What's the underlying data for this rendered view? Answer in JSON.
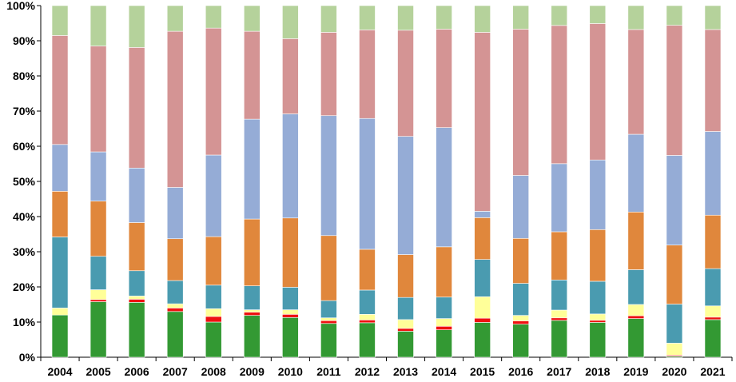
{
  "chart_data": {
    "type": "bar",
    "stacked": true,
    "percent_stacked": true,
    "title": "",
    "xlabel": "",
    "ylabel": "",
    "ylim": [
      0,
      100
    ],
    "y_ticks": [
      "0%",
      "10%",
      "20%",
      "30%",
      "40%",
      "50%",
      "60%",
      "70%",
      "80%",
      "90%",
      "100%"
    ],
    "grid": false,
    "legend": "none",
    "categories": [
      "2004",
      "2005",
      "2006",
      "2007",
      "2008",
      "2009",
      "2010",
      "2011",
      "2012",
      "2013",
      "2014",
      "2015",
      "2016",
      "2017",
      "2018",
      "2019",
      "2020",
      "2021"
    ],
    "series": [
      {
        "color": "#339933",
        "values": [
          12.0,
          15.8,
          15.6,
          13.0,
          10.0,
          11.9,
          11.3,
          9.6,
          9.8,
          7.4,
          7.8,
          9.9,
          9.4,
          10.4,
          9.9,
          11.0,
          0.3,
          10.7
        ]
      },
      {
        "color": "#ee1111",
        "values": [
          0.0,
          0.6,
          0.9,
          1.0,
          1.6,
          0.9,
          0.9,
          0.8,
          0.8,
          0.8,
          1.0,
          1.2,
          0.9,
          0.7,
          0.6,
          0.8,
          0.3,
          0.7
        ]
      },
      {
        "color": "#ffff99",
        "values": [
          2.0,
          2.8,
          0.9,
          1.2,
          2.2,
          0.7,
          1.3,
          0.8,
          1.6,
          2.5,
          2.2,
          6.1,
          1.6,
          2.2,
          1.8,
          3.2,
          3.4,
          3.2
        ]
      },
      {
        "color": "#4a9bb0",
        "values": [
          20.2,
          9.5,
          7.2,
          6.6,
          6.7,
          6.8,
          6.4,
          4.9,
          6.9,
          6.3,
          6.1,
          10.6,
          9.1,
          8.5,
          9.3,
          9.9,
          11.1,
          10.6
        ]
      },
      {
        "color": "#e0873c",
        "values": [
          13.0,
          15.7,
          13.7,
          11.9,
          13.8,
          19.0,
          19.7,
          18.5,
          11.6,
          12.2,
          14.3,
          11.9,
          12.8,
          13.6,
          14.7,
          16.4,
          16.8,
          15.2
        ]
      },
      {
        "color": "#95acd6",
        "values": [
          13.3,
          14.0,
          15.5,
          14.6,
          23.2,
          28.4,
          29.6,
          34.1,
          37.2,
          33.6,
          33.9,
          1.8,
          17.9,
          19.2,
          19.8,
          22.1,
          25.5,
          23.8
        ]
      },
      {
        "color": "#d49494",
        "values": [
          31.0,
          30.1,
          34.3,
          44.4,
          36.1,
          25.0,
          21.4,
          23.7,
          25.2,
          30.2,
          28.0,
          50.9,
          41.6,
          39.0,
          38.8,
          29.8,
          37.0,
          29.0
        ]
      },
      {
        "color": "#b5d29b",
        "values": [
          8.5,
          11.5,
          11.9,
          7.3,
          6.4,
          7.3,
          9.4,
          7.6,
          6.9,
          7.0,
          6.7,
          7.6,
          6.7,
          5.6,
          5.1,
          6.8,
          5.6,
          6.8
        ]
      }
    ]
  }
}
